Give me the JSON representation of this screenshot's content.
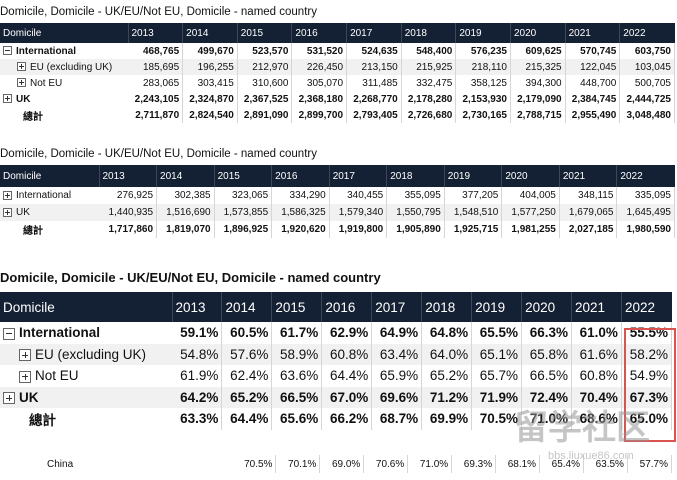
{
  "years": [
    "2013",
    "2014",
    "2015",
    "2016",
    "2017",
    "2018",
    "2019",
    "2020",
    "2021",
    "2022"
  ],
  "domicile_header": "Domicile",
  "table1": {
    "title": "Domicile, Domicile - UK/EU/Not EU, Domicile - named country",
    "rows": [
      {
        "label": "International",
        "expand": "minus",
        "values": [
          "468,765",
          "499,670",
          "523,570",
          "531,520",
          "524,635",
          "548,400",
          "576,235",
          "609,625",
          "570,745",
          "603,750"
        ]
      },
      {
        "label": "EU (excluding UK)",
        "expand": "plus",
        "values": [
          "185,695",
          "196,255",
          "212,970",
          "226,450",
          "213,150",
          "215,925",
          "218,110",
          "215,325",
          "122,045",
          "103,045"
        ]
      },
      {
        "label": "Not EU",
        "expand": "plus",
        "values": [
          "283,065",
          "303,415",
          "310,600",
          "305,070",
          "311,485",
          "332,475",
          "358,125",
          "394,300",
          "448,700",
          "500,705"
        ]
      },
      {
        "label": "UK",
        "expand": "plus",
        "values": [
          "2,243,105",
          "2,324,870",
          "2,367,525",
          "2,368,180",
          "2,268,770",
          "2,178,280",
          "2,153,930",
          "2,179,090",
          "2,384,745",
          "2,444,725"
        ]
      },
      {
        "label": "總計",
        "expand": "",
        "values": [
          "2,711,870",
          "2,824,540",
          "2,891,090",
          "2,899,700",
          "2,793,405",
          "2,726,680",
          "2,730,165",
          "2,788,715",
          "2,955,490",
          "3,048,480"
        ]
      }
    ]
  },
  "table2": {
    "title": "Domicile, Domicile - UK/EU/Not EU, Domicile - named country",
    "rows": [
      {
        "label": "International",
        "expand": "plus",
        "values": [
          "276,925",
          "302,385",
          "323,065",
          "334,290",
          "340,455",
          "355,095",
          "377,205",
          "404,005",
          "348,115",
          "335,095"
        ]
      },
      {
        "label": "UK",
        "expand": "plus",
        "values": [
          "1,440,935",
          "1,516,690",
          "1,573,855",
          "1,586,325",
          "1,579,340",
          "1,550,795",
          "1,548,510",
          "1,577,250",
          "1,679,065",
          "1,645,495"
        ]
      },
      {
        "label": "總計",
        "expand": "",
        "values": [
          "1,717,860",
          "1,819,070",
          "1,896,925",
          "1,920,620",
          "1,919,800",
          "1,905,890",
          "1,925,715",
          "1,981,255",
          "2,027,185",
          "1,980,590"
        ]
      }
    ]
  },
  "table3": {
    "title": "Domicile, Domicile - UK/EU/Not EU, Domicile - named country",
    "rows": [
      {
        "label": "International",
        "expand": "minus",
        "values": [
          "59.1%",
          "60.5%",
          "61.7%",
          "62.9%",
          "64.9%",
          "64.8%",
          "65.5%",
          "66.3%",
          "61.0%",
          "55.5%"
        ]
      },
      {
        "label": "EU (excluding UK)",
        "expand": "plus",
        "values": [
          "54.8%",
          "57.6%",
          "58.9%",
          "60.8%",
          "63.4%",
          "64.0%",
          "65.1%",
          "65.8%",
          "61.6%",
          "58.2%"
        ]
      },
      {
        "label": "Not EU",
        "expand": "plus",
        "values": [
          "61.9%",
          "62.4%",
          "63.6%",
          "64.4%",
          "65.9%",
          "65.2%",
          "65.7%",
          "66.5%",
          "60.8%",
          "54.9%"
        ]
      },
      {
        "label": "UK",
        "expand": "plus",
        "values": [
          "64.2%",
          "65.2%",
          "66.5%",
          "67.0%",
          "69.6%",
          "71.2%",
          "71.9%",
          "72.4%",
          "70.4%",
          "67.3%"
        ]
      },
      {
        "label": "總計",
        "expand": "",
        "values": [
          "63.3%",
          "64.4%",
          "65.6%",
          "66.2%",
          "68.7%",
          "69.9%",
          "70.5%",
          "71.0%",
          "68.6%",
          "65.0%"
        ]
      }
    ]
  },
  "table4": {
    "rows": [
      {
        "label": "China",
        "values": [
          "70.5%",
          "70.1%",
          "69.0%",
          "70.6%",
          "71.0%",
          "69.3%",
          "68.1%",
          "65.4%",
          "63.5%",
          "57.7%"
        ]
      }
    ]
  },
  "watermark": {
    "brand": "留学社区",
    "url": "bbs.liuxue86.com"
  }
}
